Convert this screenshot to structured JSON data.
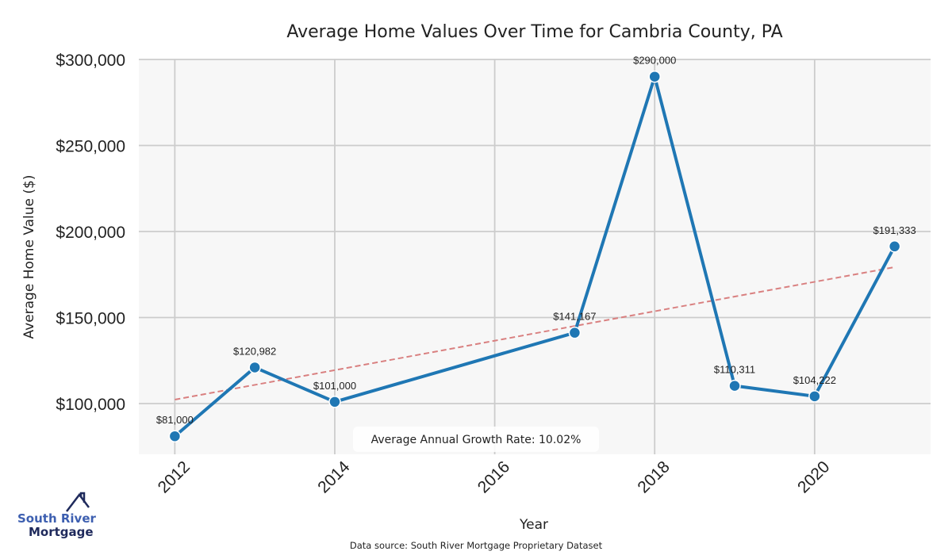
{
  "chart_data": {
    "type": "line",
    "title": "Average Home Values Over Time for Cambria County, PA",
    "xlabel": "Year",
    "ylabel": "Average Home Value ($)",
    "xlim": [
      2011.55,
      2021.45
    ],
    "ylim": [
      70500,
      300000
    ],
    "grid": true,
    "x_ticks": [
      2012,
      2014,
      2016,
      2018,
      2020
    ],
    "x_tick_labels": [
      "2012",
      "2014",
      "2016",
      "2018",
      "2020"
    ],
    "y_ticks": [
      100000,
      150000,
      200000,
      250000,
      300000
    ],
    "y_tick_labels": [
      "$100,000",
      "$150,000",
      "$200,000",
      "$250,000",
      "$300,000"
    ],
    "series": [
      {
        "name": "Average Home Value",
        "color": "#1f77b4",
        "x": [
          2012,
          2013,
          2014,
          2017,
          2018,
          2019,
          2020,
          2021
        ],
        "values": [
          81000,
          120982,
          101000,
          141167,
          290000,
          110311,
          104222,
          191333
        ],
        "labels": [
          "$81,000",
          "$120,982",
          "$101,000",
          "$141,167",
          "$290,000",
          "$110,311",
          "$104,222",
          "$191,333"
        ]
      },
      {
        "name": "Trend",
        "color": "#d98080",
        "style": "dashed",
        "x": [
          2012,
          2021
        ],
        "values": [
          102300,
          179300
        ]
      }
    ],
    "annotations": [
      "Average Annual Growth Rate: 10.02%"
    ],
    "source": "Data source: South River Mortgage Proprietary Dataset"
  },
  "branding": {
    "logo_line1": "South River",
    "logo_line2": "Mortgage",
    "primary_color": "#3d5fb0",
    "dark_color": "#1f2a5c"
  }
}
